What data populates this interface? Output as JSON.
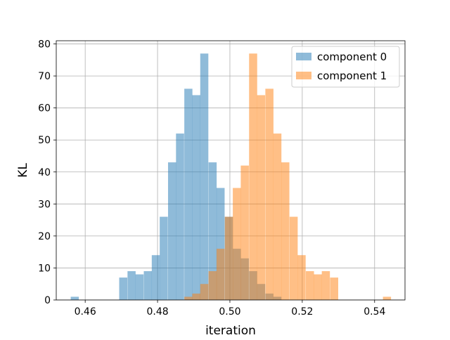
{
  "chart_data": {
    "type": "bar",
    "title": "",
    "xlabel": "iteration",
    "ylabel": "KL",
    "xlim": [
      0.452,
      0.5484
    ],
    "ylim": [
      0,
      81
    ],
    "grid": true,
    "legend_placement": "top-right",
    "x_ticks": [
      0.46,
      0.48,
      0.5,
      0.52,
      0.54
    ],
    "x_tick_labels": [
      "0.46",
      "0.48",
      "0.50",
      "0.52",
      "0.54"
    ],
    "y_ticks": [
      0,
      10,
      20,
      30,
      40,
      50,
      60,
      70,
      80
    ],
    "y_tick_labels": [
      "0",
      "10",
      "20",
      "30",
      "40",
      "50",
      "60",
      "70",
      "80"
    ],
    "series": [
      {
        "name": "component 0",
        "color": "#1f77b4",
        "opacity": 0.5,
        "bin_width": 0.00224,
        "bins": [
          {
            "x0": 0.456,
            "count": 1
          },
          {
            "x0": 0.4694,
            "count": 7
          },
          {
            "x0": 0.4717,
            "count": 9
          },
          {
            "x0": 0.4739,
            "count": 8
          },
          {
            "x0": 0.4762,
            "count": 9
          },
          {
            "x0": 0.4784,
            "count": 14
          },
          {
            "x0": 0.4806,
            "count": 26
          },
          {
            "x0": 0.4829,
            "count": 43
          },
          {
            "x0": 0.4851,
            "count": 52
          },
          {
            "x0": 0.4874,
            "count": 66
          },
          {
            "x0": 0.4896,
            "count": 64
          },
          {
            "x0": 0.4918,
            "count": 77
          },
          {
            "x0": 0.4941,
            "count": 43
          },
          {
            "x0": 0.4963,
            "count": 35
          },
          {
            "x0": 0.4986,
            "count": 26
          },
          {
            "x0": 0.5008,
            "count": 16
          },
          {
            "x0": 0.503,
            "count": 13
          },
          {
            "x0": 0.5053,
            "count": 9
          },
          {
            "x0": 0.5075,
            "count": 5
          },
          {
            "x0": 0.5098,
            "count": 2
          },
          {
            "x0": 0.512,
            "count": 1
          }
        ]
      },
      {
        "name": "component 1",
        "color": "#ff7f0e",
        "opacity": 0.5,
        "bin_width": 0.00224,
        "bins": [
          {
            "x0": 0.4874,
            "count": 1
          },
          {
            "x0": 0.4896,
            "count": 2
          },
          {
            "x0": 0.4918,
            "count": 5
          },
          {
            "x0": 0.4941,
            "count": 9
          },
          {
            "x0": 0.4963,
            "count": 16
          },
          {
            "x0": 0.4986,
            "count": 26
          },
          {
            "x0": 0.5008,
            "count": 35
          },
          {
            "x0": 0.503,
            "count": 42
          },
          {
            "x0": 0.5053,
            "count": 77
          },
          {
            "x0": 0.5075,
            "count": 64
          },
          {
            "x0": 0.5098,
            "count": 66
          },
          {
            "x0": 0.512,
            "count": 52
          },
          {
            "x0": 0.5142,
            "count": 43
          },
          {
            "x0": 0.5165,
            "count": 26
          },
          {
            "x0": 0.5187,
            "count": 14
          },
          {
            "x0": 0.521,
            "count": 9
          },
          {
            "x0": 0.5232,
            "count": 8
          },
          {
            "x0": 0.5254,
            "count": 9
          },
          {
            "x0": 0.5277,
            "count": 7
          },
          {
            "x0": 0.5423,
            "count": 1
          }
        ]
      }
    ]
  }
}
